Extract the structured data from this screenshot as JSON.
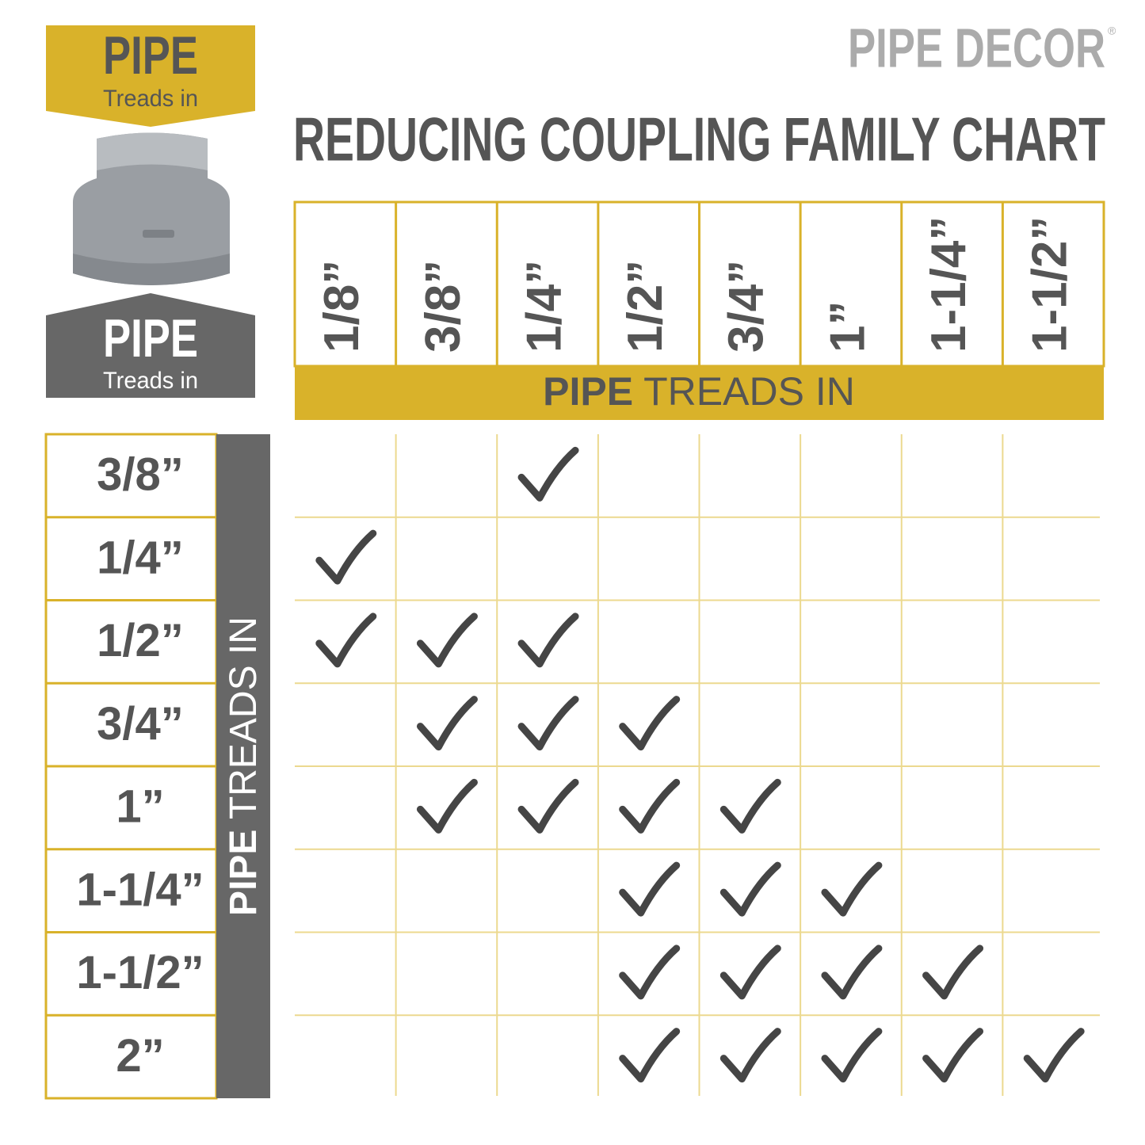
{
  "brand": {
    "name": "PIPE DECOR",
    "mark": "®"
  },
  "title": "REDUCING COUPLING FAMILY CHART",
  "badges": {
    "top": {
      "title": "PIPE",
      "subtitle": "Treads in"
    },
    "bottom": {
      "title": "PIPE",
      "subtitle": "Treads in"
    }
  },
  "table": {
    "column_label": {
      "bold": "PIPE",
      "rest": "TREADS IN"
    },
    "row_label": {
      "bold": "PIPE",
      "rest": "TREADS IN"
    },
    "columns": [
      "1/8”",
      "3/8”",
      "1/4”",
      "1/2”",
      "3/4”",
      "1”",
      "1-1/4”",
      "1-1/2”"
    ],
    "rows": [
      {
        "label": "3/8”",
        "fits": [
          false,
          false,
          true,
          false,
          false,
          false,
          false,
          false
        ]
      },
      {
        "label": "1/4”",
        "fits": [
          true,
          false,
          false,
          false,
          false,
          false,
          false,
          false
        ]
      },
      {
        "label": "1/2”",
        "fits": [
          true,
          true,
          true,
          false,
          false,
          false,
          false,
          false
        ]
      },
      {
        "label": "3/4”",
        "fits": [
          false,
          true,
          true,
          true,
          false,
          false,
          false,
          false
        ]
      },
      {
        "label": "1”",
        "fits": [
          false,
          true,
          true,
          true,
          true,
          false,
          false,
          false
        ]
      },
      {
        "label": "1-1/4”",
        "fits": [
          false,
          false,
          false,
          true,
          true,
          true,
          false,
          false
        ]
      },
      {
        "label": "1-1/2”",
        "fits": [
          false,
          false,
          false,
          true,
          true,
          true,
          true,
          false
        ]
      },
      {
        "label": "2”",
        "fits": [
          false,
          false,
          false,
          true,
          true,
          true,
          true,
          true
        ]
      }
    ]
  }
}
